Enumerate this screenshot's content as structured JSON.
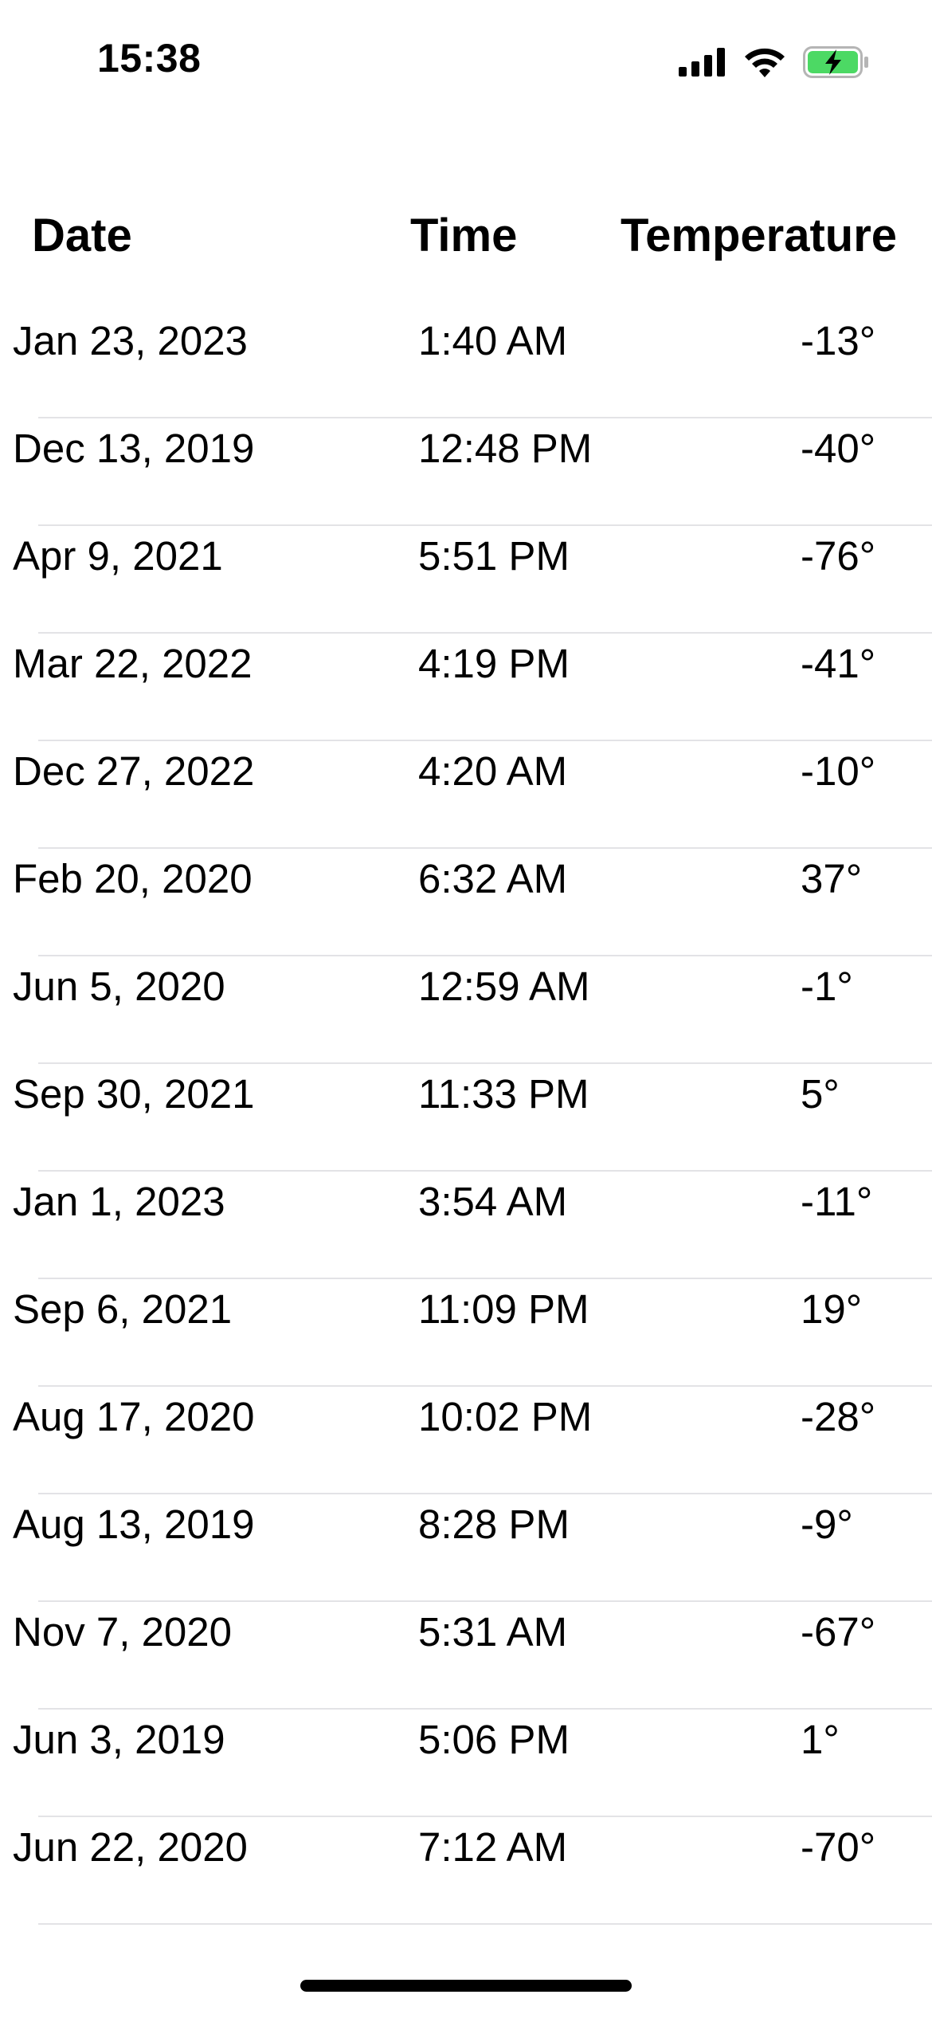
{
  "status_bar": {
    "time": "15:38",
    "icons": [
      "cellular-signal-icon",
      "wifi-icon",
      "battery-charging-icon"
    ],
    "battery_color": "#4cd964"
  },
  "table": {
    "headers": {
      "date": "Date",
      "time": "Time",
      "temperature": "Temperature"
    },
    "rows": [
      {
        "date": "Jan 23, 2023",
        "time": "1:40 AM",
        "temperature": "-13°"
      },
      {
        "date": "Dec 13, 2019",
        "time": "12:48 PM",
        "temperature": "-40°"
      },
      {
        "date": "Apr 9, 2021",
        "time": "5:51 PM",
        "temperature": "-76°"
      },
      {
        "date": "Mar 22, 2022",
        "time": "4:19 PM",
        "temperature": "-41°"
      },
      {
        "date": "Dec 27, 2022",
        "time": "4:20 AM",
        "temperature": "-10°"
      },
      {
        "date": "Feb 20, 2020",
        "time": "6:32 AM",
        "temperature": "37°"
      },
      {
        "date": "Jun 5, 2020",
        "time": "12:59 AM",
        "temperature": "-1°"
      },
      {
        "date": "Sep 30, 2021",
        "time": "11:33 PM",
        "temperature": "5°"
      },
      {
        "date": "Jan 1, 2023",
        "time": "3:54 AM",
        "temperature": "-11°"
      },
      {
        "date": "Sep 6, 2021",
        "time": "11:09 PM",
        "temperature": "19°"
      },
      {
        "date": "Aug 17, 2020",
        "time": "10:02 PM",
        "temperature": "-28°"
      },
      {
        "date": "Aug 13, 2019",
        "time": "8:28 PM",
        "temperature": "-9°"
      },
      {
        "date": "Nov 7, 2020",
        "time": "5:31 AM",
        "temperature": "-67°"
      },
      {
        "date": "Jun 3, 2019",
        "time": "5:06 PM",
        "temperature": "1°"
      },
      {
        "date": "Jun 22, 2020",
        "time": "7:12 AM",
        "temperature": "-70°"
      }
    ]
  }
}
